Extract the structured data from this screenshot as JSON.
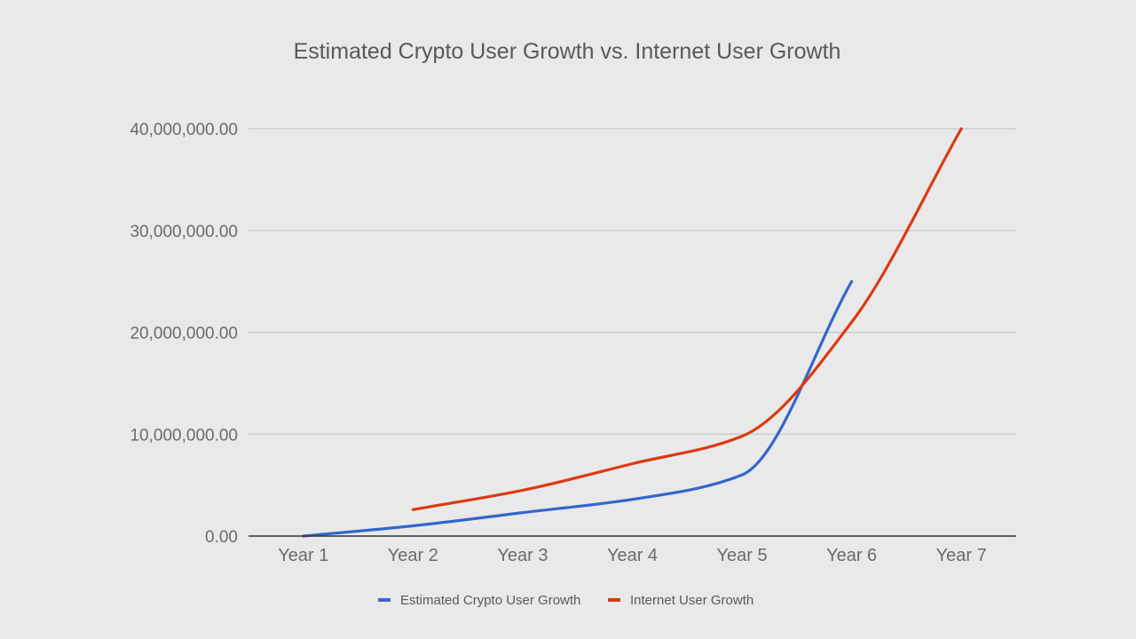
{
  "chart_data": {
    "type": "line",
    "title": "Estimated Crypto User Growth vs. Internet User Growth",
    "xlabel": "",
    "ylabel": "",
    "categories": [
      "Year 1",
      "Year 2",
      "Year 3",
      "Year 4",
      "Year 5",
      "Year 6",
      "Year 7"
    ],
    "ylim": [
      0,
      40000000
    ],
    "yticks": [
      0,
      10000000,
      20000000,
      30000000,
      40000000
    ],
    "ytick_labels": [
      "0.00",
      "10,000,000.00",
      "20,000,000.00",
      "30,000,000.00",
      "40,000,000.00"
    ],
    "grid": true,
    "legend_position": "bottom",
    "series": [
      {
        "name": "Estimated Crypto User Growth",
        "color": "#3366cc",
        "values": [
          0,
          1000000,
          2300000,
          3600000,
          6000000,
          25000000,
          null
        ]
      },
      {
        "name": "Internet User Growth",
        "color": "#dc3912",
        "values": [
          null,
          2600000,
          4500000,
          7100000,
          9800000,
          21000000,
          40000000
        ]
      }
    ]
  }
}
